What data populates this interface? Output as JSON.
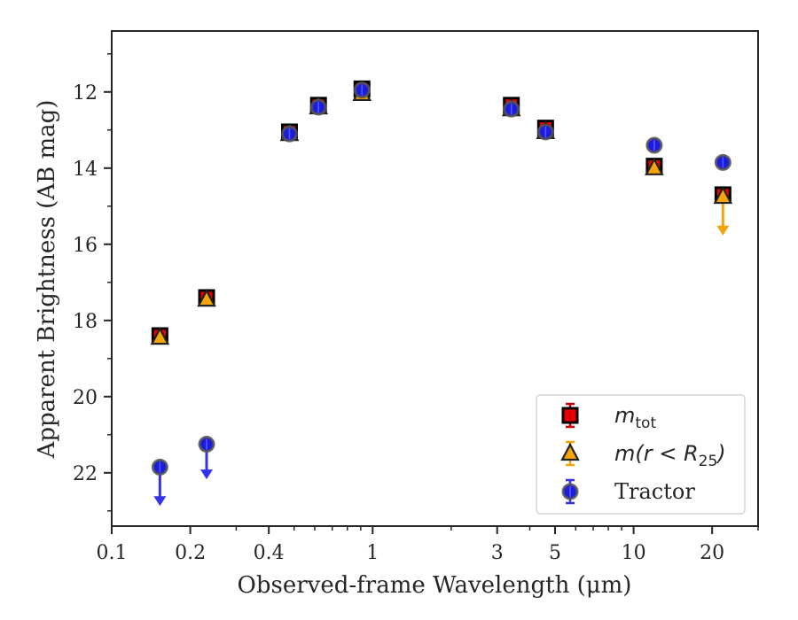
{
  "chart_data": {
    "type": "scatter",
    "xlabel": "Observed-frame Wavelength (μm)",
    "ylabel": "Apparent Brightness (AB mag)",
    "x_scale": "log",
    "xlim": [
      0.1,
      30
    ],
    "ylim": [
      23.4,
      10.4
    ],
    "y_inverted": true,
    "x_tick_labels": [
      "0.1",
      "0.2",
      "0.4",
      "1",
      "3",
      "5",
      "10",
      "20"
    ],
    "x_ticks": [
      0.1,
      0.2,
      0.4,
      1,
      3,
      5,
      10,
      20
    ],
    "y_ticks": [
      12,
      14,
      16,
      18,
      20,
      22
    ],
    "y_tick_labels": [
      "12",
      "14",
      "16",
      "18",
      "20",
      "22"
    ],
    "legend_position": "lower-right",
    "grid": false,
    "series": [
      {
        "name": "m_tot",
        "legend_main": "m",
        "legend_sub": "tot",
        "marker": "square",
        "color": "#ee0000",
        "edge": "#000000",
        "errcolor": "#cc0000",
        "points": [
          {
            "x": 0.153,
            "y": 18.4
          },
          {
            "x": 0.231,
            "y": 17.4
          },
          {
            "x": 0.48,
            "y": 13.05
          },
          {
            "x": 0.62,
            "y": 12.35
          },
          {
            "x": 0.91,
            "y": 11.92
          },
          {
            "x": 3.4,
            "y": 12.35
          },
          {
            "x": 4.6,
            "y": 12.95
          },
          {
            "x": 12.0,
            "y": 13.95
          },
          {
            "x": 22.0,
            "y": 14.7
          }
        ]
      },
      {
        "name": "m(r < R25)",
        "legend_main": "m(r < R",
        "legend_sub": "25",
        "legend_tail": ")",
        "marker": "triangle",
        "color": "#f5a50a",
        "edge": "#222222",
        "errcolor": "#f5a50a",
        "points": [
          {
            "x": 0.153,
            "y": 18.45
          },
          {
            "x": 0.231,
            "y": 17.45
          },
          {
            "x": 0.48,
            "y": 13.1
          },
          {
            "x": 0.62,
            "y": 12.4
          },
          {
            "x": 0.91,
            "y": 12.05
          },
          {
            "x": 3.4,
            "y": 12.45
          },
          {
            "x": 4.6,
            "y": 13.05
          },
          {
            "x": 12.0,
            "y": 14.0
          },
          {
            "x": 22.0,
            "y": 14.75,
            "upper_limit_to": 15.7
          }
        ]
      },
      {
        "name": "Tractor",
        "marker": "circle",
        "color": "#1c1ce0",
        "edge": "#555555",
        "errcolor": "#3333ee",
        "points": [
          {
            "x": 0.153,
            "y": 21.85,
            "upper_limit_to": 22.8
          },
          {
            "x": 0.231,
            "y": 21.25,
            "upper_limit_to": 22.1
          },
          {
            "x": 0.48,
            "y": 13.1
          },
          {
            "x": 0.62,
            "y": 12.4
          },
          {
            "x": 0.91,
            "y": 11.95
          },
          {
            "x": 3.4,
            "y": 12.45
          },
          {
            "x": 4.6,
            "y": 13.05
          },
          {
            "x": 12.0,
            "y": 13.4
          },
          {
            "x": 22.0,
            "y": 13.85
          }
        ]
      }
    ]
  }
}
